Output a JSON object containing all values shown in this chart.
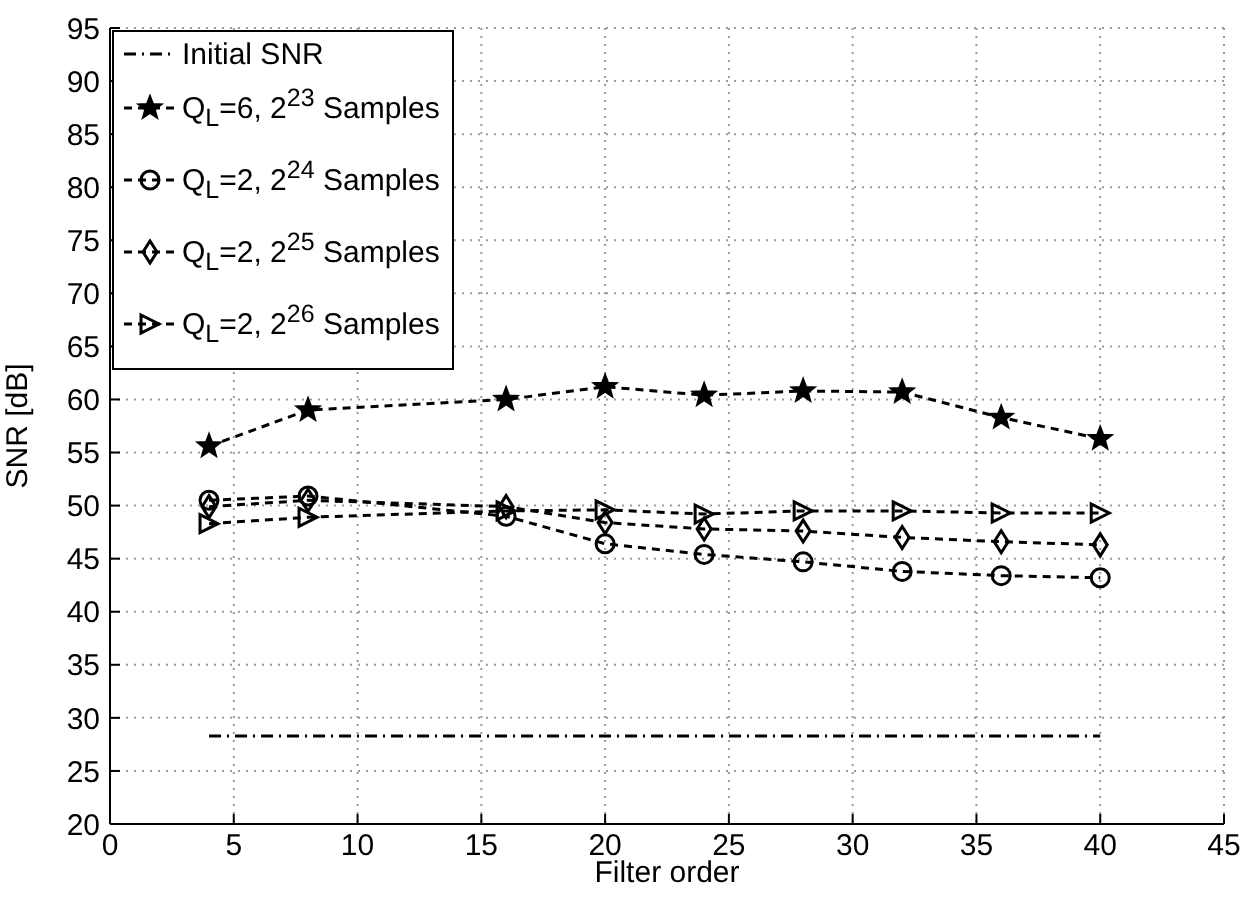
{
  "chart_data": {
    "type": "line",
    "xlabel": "Filter order",
    "ylabel": "SNR [dB]",
    "xlim": [
      0,
      45
    ],
    "xticks": [
      0,
      5,
      10,
      15,
      20,
      25,
      30,
      35,
      40,
      45
    ],
    "ylim": [
      20,
      95
    ],
    "yticks": [
      20,
      25,
      30,
      35,
      40,
      45,
      50,
      55,
      60,
      65,
      70,
      75,
      80,
      85,
      90,
      95
    ],
    "grid": true,
    "legend": "top left",
    "series": [
      {
        "name": "Initial SNR",
        "color": "#000000",
        "x": [
          4,
          40
        ],
        "values": [
          28.3,
          28.3
        ],
        "marker": "none",
        "line_style": "dashdot"
      },
      {
        "name": "Q$_{L}$=6, 2$^{23}$ Samples",
        "color": "#000000",
        "x": [
          4,
          8,
          16,
          20,
          24,
          28,
          32,
          36,
          40
        ],
        "values": [
          55.6,
          59,
          60,
          61.2,
          60.4,
          60.8,
          60.7,
          58.3,
          56.3
        ],
        "marker": "star",
        "line_style": "dashed"
      },
      {
        "name": "Q$_{L}$=2, 2$^{24}$ Samples",
        "color": "#000000",
        "x": [
          4,
          8,
          16,
          20,
          24,
          28,
          32,
          36,
          40
        ],
        "values": [
          50.5,
          50.9,
          49,
          46.4,
          45.4,
          44.7,
          43.8,
          43.4,
          43.2
        ],
        "marker": "circle",
        "line_style": "dashed"
      },
      {
        "name": "Q$_{L}$=2, 2$^{25}$ Samples",
        "color": "#000000",
        "x": [
          4,
          8,
          16,
          20,
          24,
          28,
          32,
          36,
          40
        ],
        "values": [
          49.9,
          50.5,
          49.9,
          48.4,
          47.8,
          47.6,
          47,
          46.6,
          46.3
        ],
        "marker": "diamond",
        "line_style": "dashed"
      },
      {
        "name": "Q$_{L}$=2, 2$^{26}$ Samples",
        "color": "#000000",
        "x": [
          4,
          8,
          16,
          20,
          24,
          28,
          32,
          36,
          40
        ],
        "values": [
          48.3,
          48.9,
          49.5,
          49.6,
          49.2,
          49.5,
          49.5,
          49.3,
          49.3
        ],
        "marker": "triangle",
        "line_style": "dashed"
      }
    ]
  }
}
